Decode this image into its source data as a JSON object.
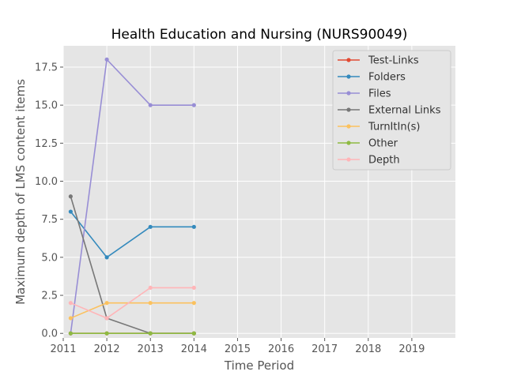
{
  "chart_data": {
    "type": "line",
    "title": "Health Education and Nursing (NURS90049)",
    "xlabel": "Time Period",
    "ylabel": "Maximum depth of LMS content items",
    "xlim": [
      2011,
      2020
    ],
    "ylim": [
      -0.3,
      18.9
    ],
    "xticks": [
      "2011",
      "2012",
      "2013",
      "2014",
      "2015",
      "2016",
      "2017",
      "2018",
      "2019"
    ],
    "yticks": [
      "0.0",
      "2.5",
      "5.0",
      "7.5",
      "10.0",
      "12.5",
      "15.0",
      "17.5"
    ],
    "grid": true,
    "legend_position": "top-right",
    "x": [
      2011.17,
      2012,
      2013,
      2014
    ],
    "series": [
      {
        "name": "Test-Links",
        "color": "#e24a33",
        "values": [
          0,
          0,
          0,
          0
        ]
      },
      {
        "name": "Folders",
        "color": "#348abd",
        "values": [
          8,
          5,
          7,
          7
        ]
      },
      {
        "name": "Files",
        "color": "#988ed5",
        "values": [
          0,
          18,
          15,
          15
        ]
      },
      {
        "name": "External Links",
        "color": "#777777",
        "values": [
          9,
          1,
          0,
          0
        ]
      },
      {
        "name": "TurnItIn(s)",
        "color": "#fbc15e",
        "values": [
          1,
          2,
          2,
          2
        ]
      },
      {
        "name": "Other",
        "color": "#8eba42",
        "values": [
          0,
          0,
          0,
          0
        ]
      },
      {
        "name": "Depth",
        "color": "#ffb5b8",
        "values": [
          2,
          1,
          3,
          3
        ]
      }
    ]
  }
}
